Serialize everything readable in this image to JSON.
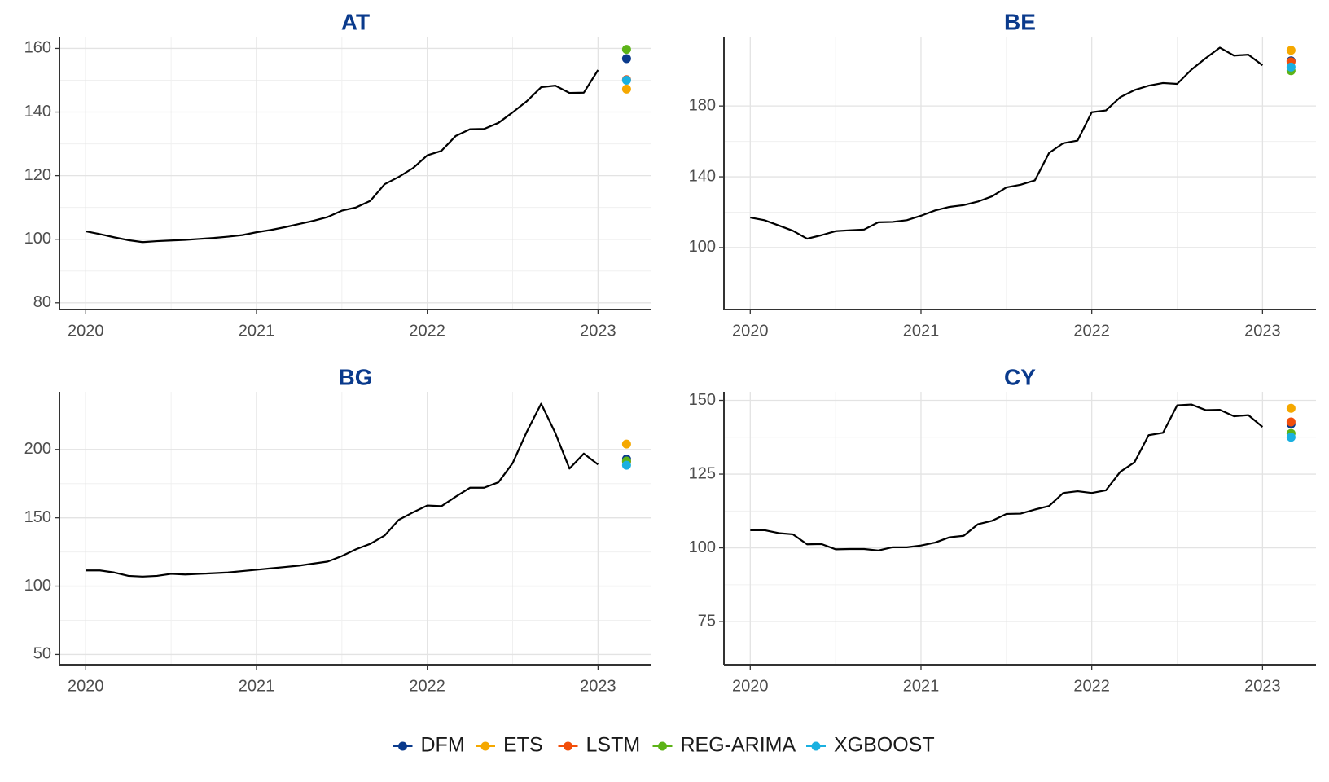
{
  "legend": [
    {
      "name": "DFM",
      "color": "#0a3a8c"
    },
    {
      "name": "ETS",
      "color": "#f5a800"
    },
    {
      "name": "LSTM",
      "color": "#f24e0a"
    },
    {
      "name": "REG-ARIMA",
      "color": "#5cb317"
    },
    {
      "name": "XGBOOST",
      "color": "#1ab0e0"
    }
  ],
  "chart_data": [
    {
      "type": "line",
      "title": "AT",
      "x": [
        2020,
        2020.083,
        2020.167,
        2020.25,
        2020.333,
        2020.417,
        2020.5,
        2020.583,
        2020.667,
        2020.75,
        2020.833,
        2020.917,
        2021,
        2021.083,
        2021.167,
        2021.25,
        2021.333,
        2021.417,
        2021.5,
        2021.583,
        2021.667,
        2021.75,
        2021.833,
        2021.917,
        2022,
        2022.083,
        2022.167,
        2022.25,
        2022.333,
        2022.417,
        2022.5,
        2022.583,
        2022.667,
        2022.75,
        2022.833,
        2022.917,
        2023
      ],
      "series": [
        {
          "color": "#000000",
          "values": [
            102.5,
            101.6,
            100.6,
            99.7,
            99.1,
            99.4,
            99.6,
            99.8,
            100.1,
            100.4,
            100.8,
            101.3,
            102.2,
            102.9,
            103.8,
            104.8,
            105.8,
            107,
            109,
            110,
            112.1,
            117.3,
            119.6,
            122.4,
            126.4,
            127.8,
            132.5,
            134.6,
            134.7,
            136.6,
            139.9,
            143.4,
            147.8,
            148.3,
            146,
            146.1,
            153.2
          ]
        }
      ],
      "forecast_x": 2023.167,
      "forecasts": [
        156.8,
        147.2,
        150.2,
        159.7,
        150
      ],
      "xlim": [
        2019.846,
        2023.313
      ],
      "xticks": [
        2020,
        2021,
        2022,
        2023
      ],
      "ylim": [
        77.9,
        163.7
      ],
      "yticks": [
        80,
        100,
        120,
        140,
        160
      ],
      "grid": true
    },
    {
      "type": "line",
      "title": "BE",
      "x": [
        2020,
        2020.083,
        2020.167,
        2020.25,
        2020.333,
        2020.417,
        2020.5,
        2020.583,
        2020.667,
        2020.75,
        2020.833,
        2020.917,
        2021,
        2021.083,
        2021.167,
        2021.25,
        2021.333,
        2021.417,
        2021.5,
        2021.583,
        2021.667,
        2021.75,
        2021.833,
        2021.917,
        2022,
        2022.083,
        2022.167,
        2022.25,
        2022.333,
        2022.417,
        2022.5,
        2022.583,
        2022.667,
        2022.75,
        2022.833,
        2022.917,
        2023
      ],
      "series": [
        {
          "color": "#000000",
          "values": [
            117,
            115.5,
            112.5,
            109.5,
            105,
            107,
            109.3,
            109.8,
            110.2,
            114.3,
            114.5,
            115.5,
            118,
            121,
            123,
            124,
            126,
            129,
            134,
            135.5,
            138,
            153.5,
            159,
            160.5,
            176.5,
            177.5,
            185,
            189,
            191.5,
            193,
            192.5,
            200.5,
            207,
            213,
            208.5,
            209,
            203
          ]
        }
      ],
      "forecast_x": 2023.167,
      "forecasts": [
        205.5,
        211.5,
        205,
        200,
        202
      ],
      "xlim": [
        2019.846,
        2023.313
      ],
      "xticks": [
        2020,
        2021,
        2022,
        2023
      ],
      "ylim": [
        65,
        219.2
      ],
      "yticks": [
        100,
        140,
        180
      ],
      "grid": true
    },
    {
      "type": "line",
      "title": "BG",
      "x": [
        2020,
        2020.083,
        2020.167,
        2020.25,
        2020.333,
        2020.417,
        2020.5,
        2020.583,
        2020.667,
        2020.75,
        2020.833,
        2020.917,
        2021,
        2021.083,
        2021.167,
        2021.25,
        2021.333,
        2021.417,
        2021.5,
        2021.583,
        2021.667,
        2021.75,
        2021.833,
        2021.917,
        2022,
        2022.083,
        2022.167,
        2022.25,
        2022.333,
        2022.417,
        2022.5,
        2022.583,
        2022.667,
        2022.75,
        2022.833,
        2022.917,
        2023
      ],
      "series": [
        {
          "color": "#000000",
          "values": [
            111.5,
            111.5,
            110,
            107.5,
            107,
            107.5,
            109,
            108.5,
            109,
            109.5,
            110,
            111,
            112,
            113,
            114,
            115,
            116.5,
            118,
            122,
            127,
            131,
            137,
            148.5,
            154,
            159,
            158.5,
            165.5,
            172,
            172,
            176,
            190,
            213,
            233.5,
            212,
            186,
            197,
            189
          ]
        }
      ],
      "forecast_x": 2023.167,
      "forecasts": [
        193,
        204,
        191,
        191.5,
        188.5
      ],
      "xlim": [
        2019.846,
        2023.313
      ],
      "xticks": [
        2020,
        2021,
        2022,
        2023
      ],
      "ylim": [
        42.5,
        242.2
      ],
      "yticks": [
        50,
        100,
        150,
        200
      ],
      "grid": true
    },
    {
      "type": "line",
      "title": "CY",
      "x": [
        2020,
        2020.083,
        2020.167,
        2020.25,
        2020.333,
        2020.417,
        2020.5,
        2020.583,
        2020.667,
        2020.75,
        2020.833,
        2020.917,
        2021,
        2021.083,
        2021.167,
        2021.25,
        2021.333,
        2021.417,
        2021.5,
        2021.583,
        2021.667,
        2021.75,
        2021.833,
        2021.917,
        2022,
        2022.083,
        2022.167,
        2022.25,
        2022.333,
        2022.417,
        2022.5,
        2022.583,
        2022.667,
        2022.75,
        2022.833,
        2022.917,
        2023
      ],
      "series": [
        {
          "color": "#000000",
          "values": [
            106,
            106,
            105,
            104.6,
            101.2,
            101.3,
            99.5,
            99.6,
            99.6,
            99.1,
            100.2,
            100.2,
            100.8,
            101.8,
            103.6,
            104.1,
            108,
            109.2,
            111.5,
            111.6,
            113,
            114.2,
            118.6,
            119.2,
            118.6,
            119.5,
            125.8,
            129,
            138.2,
            139,
            148.3,
            148.6,
            146.7,
            146.8,
            144.6,
            145,
            141
          ]
        }
      ],
      "forecast_x": 2023.167,
      "forecasts": [
        142,
        147.3,
        142.7,
        138.8,
        137.5
      ],
      "xlim": [
        2019.846,
        2023.313
      ],
      "xticks": [
        2020,
        2021,
        2022,
        2023
      ],
      "ylim": [
        60.4,
        152.9
      ],
      "yticks": [
        75,
        100,
        125,
        150
      ],
      "grid": true
    }
  ]
}
